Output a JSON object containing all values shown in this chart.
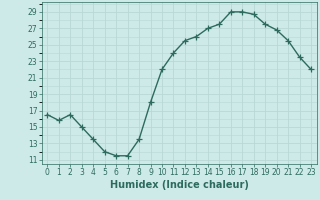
{
  "x": [
    0,
    1,
    2,
    3,
    4,
    5,
    6,
    7,
    8,
    9,
    10,
    11,
    12,
    13,
    14,
    15,
    16,
    17,
    18,
    19,
    20,
    21,
    22,
    23
  ],
  "y": [
    16.5,
    15.8,
    16.5,
    15.0,
    13.5,
    12.0,
    11.5,
    11.5,
    13.5,
    18.0,
    22.0,
    24.0,
    25.5,
    26.0,
    27.0,
    27.5,
    29.0,
    29.0,
    28.7,
    27.5,
    26.8,
    25.5,
    23.5,
    22.0
  ],
  "line_color": "#2d6b5e",
  "marker": "+",
  "markersize": 4,
  "linewidth": 1.0,
  "bg_color": "#ceeae8",
  "grid_color": "#b8d8d5",
  "xlabel": "Humidex (Indice chaleur)",
  "xlabel_fontsize": 7,
  "ytick_labels": [
    11,
    13,
    15,
    17,
    19,
    21,
    23,
    25,
    27,
    29
  ],
  "xtick_labels": [
    0,
    1,
    2,
    3,
    4,
    5,
    6,
    7,
    8,
    9,
    10,
    11,
    12,
    13,
    14,
    15,
    16,
    17,
    18,
    19,
    20,
    21,
    22,
    23
  ],
  "ylim": [
    10.5,
    30.2
  ],
  "xlim": [
    -0.5,
    23.5
  ],
  "tick_fontsize": 5.5
}
